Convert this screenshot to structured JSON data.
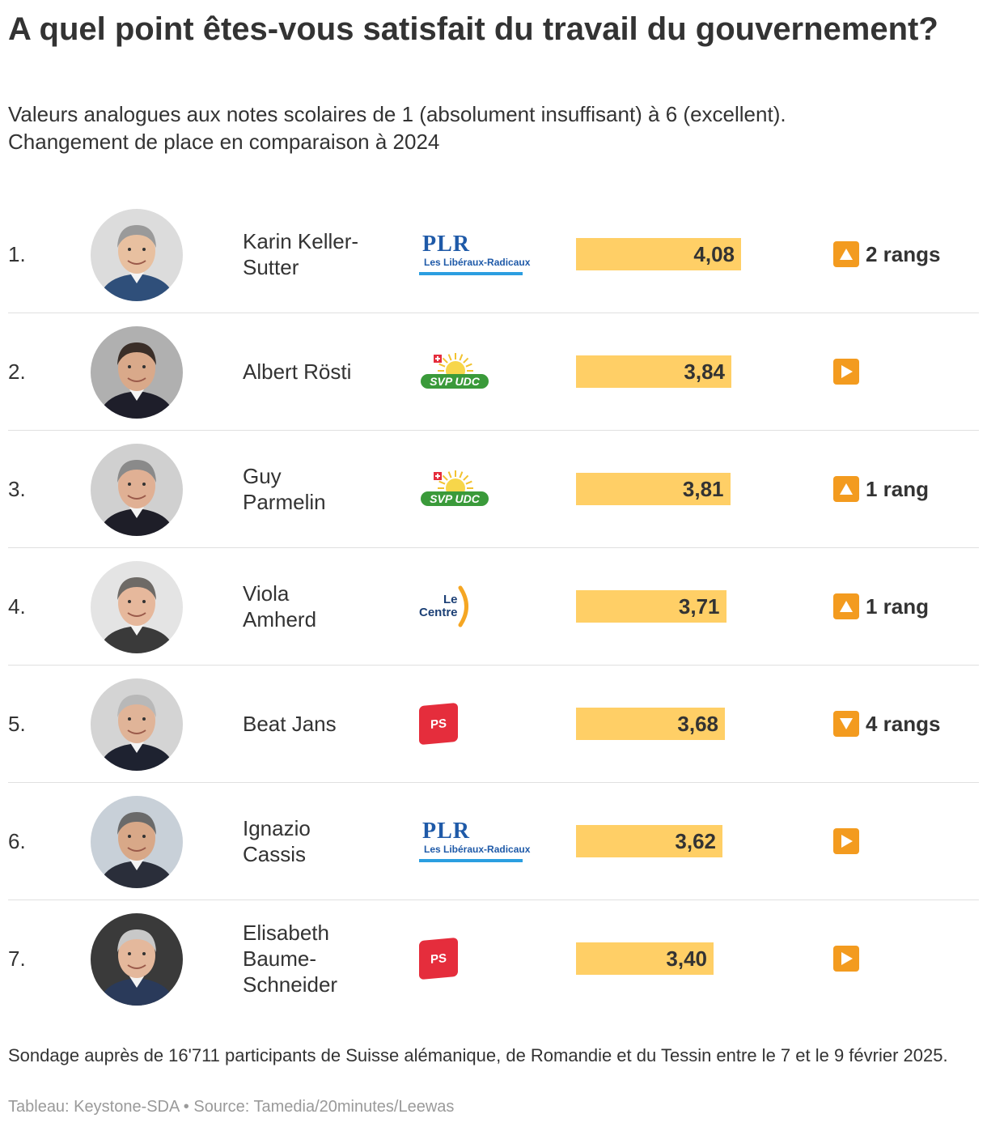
{
  "title": "A quel point êtes-vous satisfait du travail du gouvernement?",
  "subtitle_lines": [
    "Valeurs analogues aux notes scolaires de 1 (absolument insuffisant) à 6 (excellent).",
    "Changement de place en comparaison à 2024"
  ],
  "footnote": "Sondage auprès de 16'711 participants de Suisse alémanique, de Romandie et du Tessin entre le 7 et le 9 février 2025.",
  "source": "Tableau: Keystone-SDA • Source: Tamedia/20minutes/Leewas",
  "party_logos": {
    "plr": {
      "main": "PLR",
      "sub": "Les Libéraux-Radicaux"
    },
    "svp": {
      "text": "SVP UDC"
    },
    "centre": {
      "line1": "Le",
      "line2": "Centre"
    },
    "ps": {
      "text": "PS"
    }
  },
  "colors": {
    "bar": "#ffcf66",
    "change_icon": "#f39b1f",
    "text": "#333333",
    "source": "#9a9a9a",
    "plr_blue": "#1f5aa8",
    "svp_green": "#3a9a3a",
    "centre_orange": "#f5a623",
    "ps_red": "#e52d3c"
  },
  "chart_data": {
    "type": "table",
    "scale_min": 1,
    "scale_max": 6,
    "bar_axis_range": [
      0,
      6
    ],
    "columns": [
      "rang",
      "photo",
      "nom",
      "parti",
      "note",
      "changement"
    ],
    "rows": [
      {
        "rank": "1.",
        "name_lines": [
          "Karin Keller-",
          "Sutter"
        ],
        "party": "plr",
        "value": 4.08,
        "value_label": "4,08",
        "change": "up",
        "change_label": "2 rangs",
        "photo": {
          "bg": "#dcdcdc",
          "skin": "#e8c0a0",
          "hair": "#9a9a9a",
          "clothes": "#2f4f7a"
        }
      },
      {
        "rank": "2.",
        "name_lines": [
          "Albert Rösti"
        ],
        "party": "svp",
        "value": 3.84,
        "value_label": "3,84",
        "change": "same",
        "change_label": "",
        "photo": {
          "bg": "#b0b0b0",
          "skin": "#d9a98a",
          "hair": "#3a2e28",
          "clothes": "#1e1e2a"
        }
      },
      {
        "rank": "3.",
        "name_lines": [
          "Guy",
          "Parmelin"
        ],
        "party": "svp",
        "value": 3.81,
        "value_label": "3,81",
        "change": "up",
        "change_label": "1 rang",
        "photo": {
          "bg": "#d0d0d0",
          "skin": "#e0b094",
          "hair": "#8a8a8a",
          "clothes": "#1e1e28"
        }
      },
      {
        "rank": "4.",
        "name_lines": [
          "Viola",
          "Amherd"
        ],
        "party": "centre",
        "value": 3.71,
        "value_label": "3,71",
        "change": "up",
        "change_label": "1 rang",
        "photo": {
          "bg": "#e4e4e4",
          "skin": "#e6b89c",
          "hair": "#6e6a66",
          "clothes": "#3a3a3a"
        }
      },
      {
        "rank": "5.",
        "name_lines": [
          "Beat Jans"
        ],
        "party": "ps",
        "value": 3.68,
        "value_label": "3,68",
        "change": "down",
        "change_label": "4 rangs",
        "photo": {
          "bg": "#d4d4d4",
          "skin": "#e0b498",
          "hair": "#b8b8b8",
          "clothes": "#1e2230"
        }
      },
      {
        "rank": "6.",
        "name_lines": [
          "Ignazio",
          "Cassis"
        ],
        "party": "plr",
        "value": 3.62,
        "value_label": "3,62",
        "change": "same",
        "change_label": "",
        "photo": {
          "bg": "#c8d0d8",
          "skin": "#d8a888",
          "hair": "#6a6a6a",
          "clothes": "#2a2e3a"
        }
      },
      {
        "rank": "7.",
        "name_lines": [
          "Elisabeth",
          "Baume-",
          "Schneider"
        ],
        "party": "ps",
        "value": 3.4,
        "value_label": "3,40",
        "change": "same",
        "change_label": "",
        "photo": {
          "bg": "#3a3a3a",
          "skin": "#e4b89c",
          "hair": "#c8c8c8",
          "clothes": "#2a3a5a"
        }
      }
    ]
  }
}
